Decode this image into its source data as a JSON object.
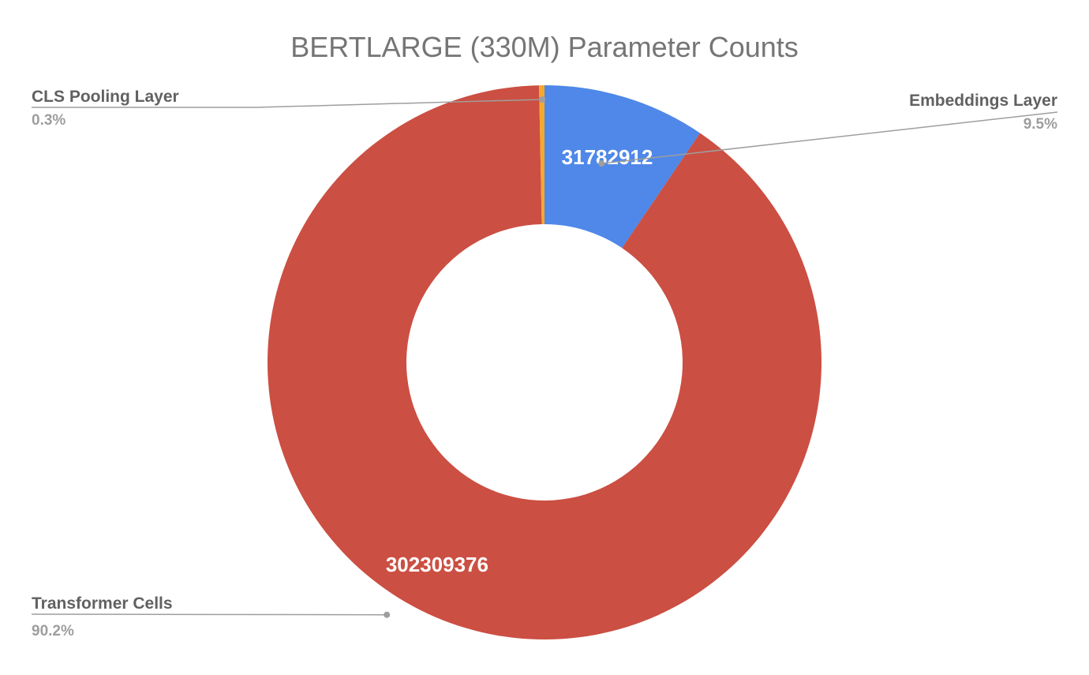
{
  "chart_data": {
    "type": "pie",
    "title": "BERTLARGE (330M) Parameter Counts",
    "donut": true,
    "legend": "none",
    "slices": [
      {
        "name": "Embeddings Layer",
        "value": 31782912,
        "value_label": "31782912",
        "percent_label": "9.5%",
        "color": "#4f88e8"
      },
      {
        "name": "Transformer Cells",
        "value": 302309376,
        "value_label": "302309376",
        "percent_label": "90.2%",
        "color": "#cb4f42"
      },
      {
        "name": "CLS Pooling Layer",
        "value": 1049600,
        "value_label": "",
        "percent_label": "0.3%",
        "color": "#f4a92d"
      }
    ]
  }
}
